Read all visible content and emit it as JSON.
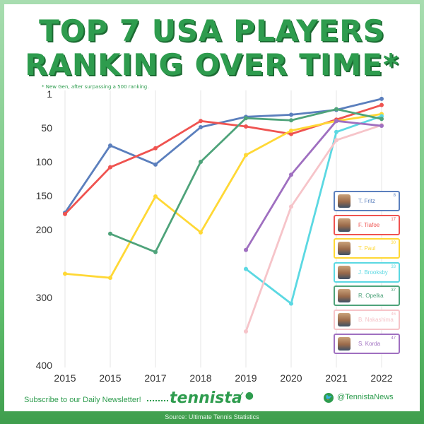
{
  "title_line1": "TOP 7 USA PLAYERS",
  "title_line2": "RANKING OVER TIME*",
  "note": "* New Gen, after surpassing a 500 ranking.",
  "chart_data": {
    "type": "line",
    "categories": [
      "2015",
      "2015",
      "2017",
      "2018",
      "2019",
      "2020",
      "2021",
      "2022"
    ],
    "y_ticks": [
      1,
      50,
      100,
      150,
      200,
      300,
      400
    ],
    "y_tick_labels": [
      "1",
      "50",
      "100",
      "150",
      "200",
      "300",
      "400"
    ],
    "y_axis_inverted": true,
    "grid": "vertical",
    "legend_position": "right",
    "series": [
      {
        "name": "T. Fritz",
        "rank": "8",
        "color": "#5b7fbd",
        "values": [
          175,
          76,
          104,
          49,
          34,
          31,
          24,
          8
        ]
      },
      {
        "name": "F. Tiafoe",
        "rank": "17",
        "color": "#ef5350",
        "values": [
          177,
          108,
          80,
          40,
          48,
          59,
          38,
          17
        ]
      },
      {
        "name": "T. Paul",
        "rank": "30",
        "color": "#ffd835",
        "values": [
          265,
          271,
          151,
          204,
          90,
          54,
          40,
          30
        ]
      },
      {
        "name": "J. Brooksby",
        "rank": "33",
        "color": "#5bd8e2",
        "values": [
          null,
          null,
          null,
          null,
          258,
          309,
          56,
          33
        ]
      },
      {
        "name": "R. Opelka",
        "rank": "37",
        "color": "#4ea37a",
        "values": [
          null,
          206,
          233,
          100,
          36,
          39,
          23,
          37
        ]
      },
      {
        "name": "B. Nakashima",
        "rank": "46",
        "color": "#f6c4c9",
        "values": [
          null,
          null,
          null,
          null,
          350,
          166,
          68,
          46
        ]
      },
      {
        "name": "S. Korda",
        "rank": "47",
        "color": "#9f6fc0",
        "values": [
          null,
          null,
          null,
          null,
          230,
          119,
          40,
          47
        ]
      }
    ]
  },
  "footer": {
    "subscribe": "Subscribe to our Daily Newsletter!",
    "brand": "tennista",
    "twitter": "@TennistaNews",
    "source": "Source: Ultimate Tennis Statistics"
  }
}
